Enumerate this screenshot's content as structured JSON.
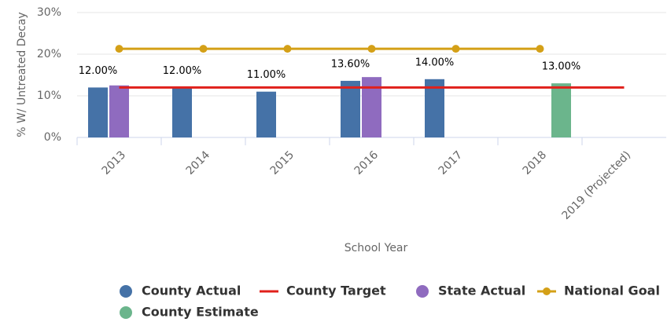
{
  "chart_data": {
    "type": "bar",
    "y_axis_label": "% W/ Untreated Decay",
    "x_axis_label": "School Year",
    "categories": [
      "2013",
      "2014",
      "2015",
      "2016",
      "2017",
      "2018",
      "2019 (Projected)"
    ],
    "ylim": [
      0,
      30
    ],
    "yticks": [
      {
        "value": 0,
        "label": "0%"
      },
      {
        "value": 10,
        "label": "10%"
      },
      {
        "value": 20,
        "label": "20%"
      },
      {
        "value": 30,
        "label": "30%"
      }
    ],
    "grid": true,
    "legend": "bottom",
    "series": [
      {
        "name": "County Actual",
        "type": "bar",
        "color": "#4572a7",
        "values": [
          12,
          12,
          11,
          13.6,
          14,
          null,
          null
        ],
        "value_labels": [
          "12.00%",
          "12.00%",
          "11.00%",
          "13.60%",
          "14.00%",
          null,
          null
        ]
      },
      {
        "name": "County Target",
        "type": "line",
        "color": "#e0201b",
        "values": [
          12,
          12,
          12,
          12,
          12,
          12,
          12
        ]
      },
      {
        "name": "State Actual",
        "type": "bar",
        "color": "#8f6bbf",
        "values": [
          12.5,
          null,
          null,
          14.5,
          null,
          null,
          null
        ]
      },
      {
        "name": "National Goal",
        "type": "line-marker",
        "color": "#d4a017",
        "values": [
          21.3,
          21.3,
          21.3,
          21.3,
          21.3,
          21.3,
          null
        ]
      },
      {
        "name": "County Estimate",
        "type": "bar",
        "color": "#6bb58c",
        "values": [
          null,
          null,
          null,
          null,
          null,
          13,
          null
        ],
        "value_labels": [
          null,
          null,
          null,
          null,
          null,
          "13.00%",
          null
        ]
      }
    ]
  }
}
